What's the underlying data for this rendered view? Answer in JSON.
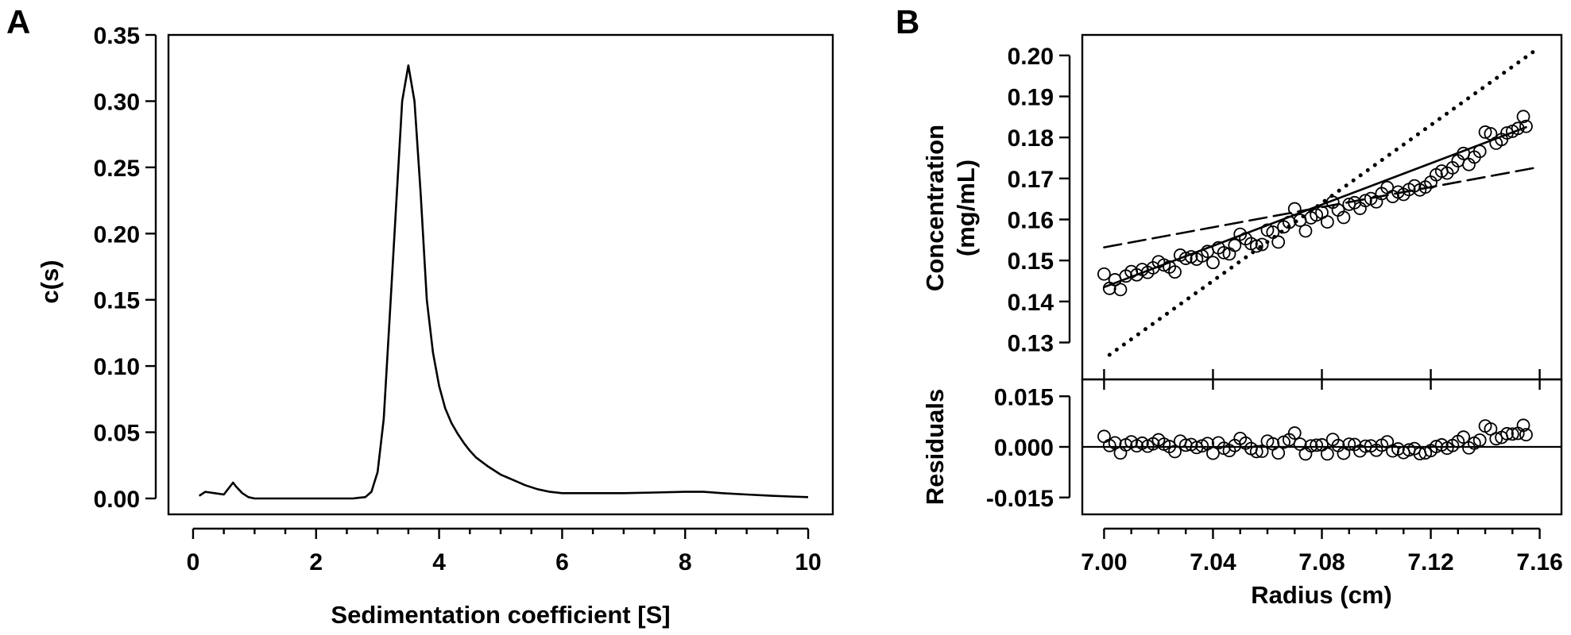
{
  "figure": {
    "panel_a_label": "A",
    "panel_b_label": "B"
  },
  "chart_data": [
    {
      "type": "line",
      "panel": "A",
      "xlabel": "Sedimentation coefficient [S]",
      "ylabel": "c(s)",
      "xlim": [
        -0.4,
        10.4
      ],
      "ylim": [
        -0.012,
        0.35
      ],
      "xticks": [
        0,
        2,
        4,
        6,
        8,
        10
      ],
      "xtick_labels": [
        "0",
        "2",
        "4",
        "6",
        "8",
        "10"
      ],
      "yticks": [
        0,
        0.05,
        0.1,
        0.15,
        0.2,
        0.25,
        0.3,
        0.35
      ],
      "ytick_labels": [
        "0.00",
        "0.05",
        "0.10",
        "0.15",
        "0.20",
        "0.25",
        "0.30",
        "0.35"
      ],
      "grid": false,
      "series": [
        {
          "x": [
            0.1,
            0.2,
            0.35,
            0.5,
            0.6,
            0.65,
            0.7,
            0.8,
            0.9,
            1.0,
            1.2,
            1.5,
            2.0,
            2.5,
            2.6,
            2.7,
            2.8,
            2.9,
            3.0,
            3.1,
            3.2,
            3.3,
            3.4,
            3.5,
            3.6,
            3.7,
            3.8,
            3.9,
            4.0,
            4.1,
            4.2,
            4.3,
            4.4,
            4.5,
            4.6,
            4.8,
            5.0,
            5.2,
            5.4,
            5.6,
            5.8,
            6.0,
            6.2,
            6.5,
            7.0,
            7.5,
            8.0,
            8.3,
            8.6,
            9.0,
            9.4,
            9.7,
            10.0
          ],
          "y": [
            0.002,
            0.005,
            0.004,
            0.003,
            0.009,
            0.012,
            0.009,
            0.004,
            0.001,
            0.0,
            0.0,
            0.0,
            0.0,
            0.0,
            0.0,
            0.0005,
            0.001,
            0.005,
            0.02,
            0.06,
            0.14,
            0.22,
            0.3,
            0.327,
            0.3,
            0.23,
            0.15,
            0.11,
            0.085,
            0.068,
            0.057,
            0.049,
            0.042,
            0.036,
            0.031,
            0.024,
            0.018,
            0.014,
            0.01,
            0.007,
            0.005,
            0.004,
            0.004,
            0.004,
            0.004,
            0.0045,
            0.005,
            0.005,
            0.004,
            0.003,
            0.002,
            0.0015,
            0.001
          ]
        }
      ]
    },
    {
      "type": "scatter",
      "panel": "B-top",
      "ylabel": "Concentration\n(mg/mL)",
      "ylabel_lines": [
        "Concentration",
        "(mg/mL)"
      ],
      "xlim": [
        6.992,
        7.168
      ],
      "ylim": [
        0.121,
        0.205
      ],
      "xticks": [
        7.0,
        7.04,
        7.08,
        7.12,
        7.16
      ],
      "yticks": [
        0.13,
        0.14,
        0.15,
        0.16,
        0.17,
        0.18,
        0.19,
        0.2
      ],
      "ytick_labels": [
        "0.13",
        "0.14",
        "0.15",
        "0.16",
        "0.17",
        "0.18",
        "0.19",
        "0.20"
      ],
      "grid": false,
      "points": {
        "x": [
          7.0,
          7.002,
          7.004,
          7.006,
          7.008,
          7.01,
          7.012,
          7.014,
          7.016,
          7.018,
          7.02,
          7.022,
          7.024,
          7.026,
          7.028,
          7.03,
          7.032,
          7.034,
          7.036,
          7.038,
          7.04,
          7.042,
          7.044,
          7.046,
          7.048,
          7.05,
          7.052,
          7.054,
          7.056,
          7.058,
          7.06,
          7.062,
          7.064,
          7.066,
          7.068,
          7.07,
          7.072,
          7.074,
          7.076,
          7.078,
          7.08,
          7.082,
          7.084,
          7.086,
          7.088,
          7.09,
          7.092,
          7.094,
          7.096,
          7.098,
          7.1,
          7.102,
          7.104,
          7.106,
          7.108,
          7.11,
          7.112,
          7.114,
          7.116,
          7.118,
          7.12,
          7.122,
          7.124,
          7.126,
          7.128,
          7.13,
          7.132,
          7.134,
          7.136,
          7.138,
          7.14,
          7.142,
          7.144,
          7.146,
          7.148,
          7.15,
          7.152,
          7.154,
          7.155
        ],
        "y": [
          0.1467,
          0.1432,
          0.1453,
          0.1429,
          0.1462,
          0.1473,
          0.1465,
          0.1478,
          0.1471,
          0.1482,
          0.1497,
          0.1489,
          0.1484,
          0.1472,
          0.1513,
          0.1505,
          0.1509,
          0.1503,
          0.1511,
          0.1522,
          0.1495,
          0.1531,
          0.1519,
          0.1516,
          0.1537,
          0.1564,
          0.1553,
          0.1541,
          0.1535,
          0.1539,
          0.1574,
          0.1569,
          0.1545,
          0.1582,
          0.1593,
          0.1626,
          0.1598,
          0.1572,
          0.1604,
          0.1611,
          0.1617,
          0.1594,
          0.1642,
          0.1623,
          0.1605,
          0.1637,
          0.1641,
          0.1627,
          0.1646,
          0.1651,
          0.1643,
          0.1663,
          0.1678,
          0.1656,
          0.1667,
          0.1661,
          0.1673,
          0.1682,
          0.1672,
          0.1679,
          0.1691,
          0.1709,
          0.1718,
          0.1713,
          0.1726,
          0.1743,
          0.1761,
          0.1734,
          0.1752,
          0.1766,
          0.1813,
          0.1809,
          0.1786,
          0.1795,
          0.1811,
          0.1815,
          0.1822,
          0.1851,
          0.1827
        ]
      },
      "lines": [
        {
          "style": "solid",
          "x": [
            7.0,
            7.155
          ],
          "y": [
            0.1435,
            0.1825
          ]
        },
        {
          "style": "dashed",
          "x": [
            7.0,
            7.16
          ],
          "y": [
            0.1532,
            0.1728
          ]
        },
        {
          "style": "dotted",
          "x": [
            7.002,
            7.16
          ],
          "y": [
            0.127,
            0.202
          ]
        }
      ]
    },
    {
      "type": "scatter",
      "panel": "B-bottom",
      "xlabel": "Radius (cm)",
      "ylabel": "Residuals",
      "xlim": [
        6.992,
        7.168
      ],
      "ylim": [
        -0.02,
        0.02
      ],
      "xticks": [
        7.0,
        7.04,
        7.08,
        7.12,
        7.16
      ],
      "xtick_labels": [
        "7.00",
        "7.04",
        "7.08",
        "7.12",
        "7.16"
      ],
      "yticks": [
        0.015,
        0.0,
        -0.015
      ],
      "ytick_labels": [
        "0.015",
        "0.000",
        "-0.015"
      ],
      "reference_line": 0.0,
      "grid": false,
      "points": {
        "x": [
          7.0,
          7.002,
          7.004,
          7.006,
          7.008,
          7.01,
          7.012,
          7.014,
          7.016,
          7.018,
          7.02,
          7.022,
          7.024,
          7.026,
          7.028,
          7.03,
          7.032,
          7.034,
          7.036,
          7.038,
          7.04,
          7.042,
          7.044,
          7.046,
          7.048,
          7.05,
          7.052,
          7.054,
          7.056,
          7.058,
          7.06,
          7.062,
          7.064,
          7.066,
          7.068,
          7.07,
          7.072,
          7.074,
          7.076,
          7.078,
          7.08,
          7.082,
          7.084,
          7.086,
          7.088,
          7.09,
          7.092,
          7.094,
          7.096,
          7.098,
          7.1,
          7.102,
          7.104,
          7.106,
          7.108,
          7.11,
          7.112,
          7.114,
          7.116,
          7.118,
          7.12,
          7.122,
          7.124,
          7.126,
          7.128,
          7.13,
          7.132,
          7.134,
          7.136,
          7.138,
          7.14,
          7.142,
          7.144,
          7.146,
          7.148,
          7.15,
          7.152,
          7.154,
          7.155
        ],
        "y": [
          0.0031,
          0.0004,
          0.0012,
          -0.0018,
          0.0006,
          0.0015,
          0.0003,
          0.0011,
          0.0002,
          0.0009,
          0.0021,
          0.0008,
          0.0001,
          -0.0014,
          0.0017,
          0.0005,
          0.0007,
          -0.0002,
          0.0003,
          0.001,
          -0.0019,
          0.0012,
          -0.0004,
          -0.0011,
          0.0004,
          0.0025,
          0.0011,
          -0.0005,
          -0.0014,
          -0.0013,
          0.0017,
          0.0009,
          -0.0018,
          0.0014,
          0.0021,
          0.0041,
          0.0008,
          -0.0021,
          0.0003,
          0.0005,
          0.0006,
          -0.0021,
          0.0022,
          0.0004,
          -0.0019,
          0.0008,
          0.0007,
          -0.0012,
          0.0002,
          0.0003,
          -0.001,
          0.0005,
          0.0015,
          -0.0012,
          -0.0006,
          -0.0017,
          -0.0009,
          -0.0005,
          -0.002,
          -0.0018,
          -0.0011,
          0.0001,
          0.0006,
          -0.0004,
          0.0004,
          0.0016,
          0.0029,
          -0.0003,
          0.0011,
          0.002,
          0.0062,
          0.0053,
          0.0024,
          0.0028,
          0.0039,
          0.0038,
          0.004,
          0.0064,
          0.0036
        ]
      }
    }
  ]
}
